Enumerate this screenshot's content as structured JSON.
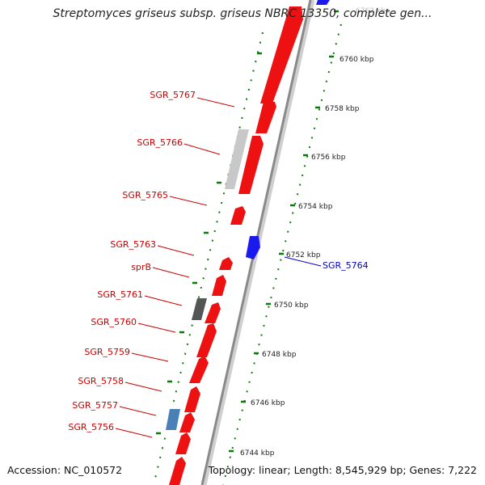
{
  "title": "Streptomyces griseus subsp. griseus NBRC 13350, complete gen...",
  "footer": {
    "accession": "Accession: NC_010572",
    "summary": "Topology: linear; Length: 8,545,929 bp; Genes: 7,222"
  },
  "colors": {
    "gene_red": "#ee1111",
    "gene_blue": "#1a1aee",
    "gene_steel": "#4a80b8",
    "gene_light_gray": "#c8c8c8",
    "gene_dark_gray": "#555555",
    "label_red": "#cc0000",
    "label_blue": "#0000cc",
    "tick_green": "#0a7a0a",
    "backbone": "#8a8a8a"
  },
  "scale": {
    "labels": [
      "6744 kbp",
      "6746 kbp",
      "6748 kbp",
      "6750 kbp",
      "6752 kbp",
      "6754 kbp",
      "6756 kbp",
      "6758 kbp",
      "6760 kbp",
      "6762 kbp"
    ]
  },
  "genes_left": [
    {
      "label": "SGR_5767"
    },
    {
      "label": "SGR_5766"
    },
    {
      "label": "SGR_5765"
    },
    {
      "label": "SGR_5763"
    },
    {
      "label": "sprB"
    },
    {
      "label": "SGR_5761"
    },
    {
      "label": "SGR_5760"
    },
    {
      "label": "SGR_5759"
    },
    {
      "label": "SGR_5758"
    },
    {
      "label": "SGR_5757"
    },
    {
      "label": "SGR_5756"
    }
  ],
  "genes_right": [
    {
      "label": "SGR_5764"
    }
  ]
}
